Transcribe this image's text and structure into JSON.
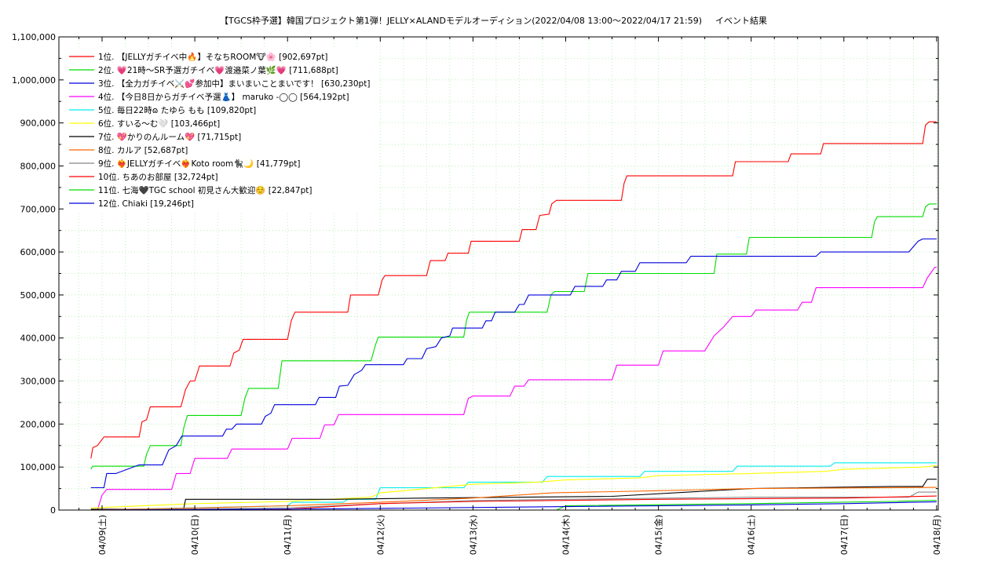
{
  "chart_data": {
    "type": "line",
    "title": "【TGCS枠予選】韓国プロジェクト第1弾！JELLY×ALANDモデルオーディション(2022/04/08 13:00〜2022/04/17 21:59)",
    "subtitle": "イベント結果",
    "xlabel": "",
    "ylabel": "",
    "x_ticks": [
      "04/09(土)",
      "04/10(日)",
      "04/11(月)",
      "04/12(火)",
      "04/13(水)",
      "04/14(木)",
      "04/15(金)",
      "04/16(土)",
      "04/17(日)",
      "04/18(月)"
    ],
    "y_ticks": [
      "0",
      "100,000",
      "200,000",
      "300,000",
      "400,000",
      "500,000",
      "600,000",
      "700,000",
      "800,000",
      "900,000",
      "1,000,000",
      "1,100,000"
    ],
    "ylim": [
      0,
      1100000
    ],
    "xlim_days": [
      0,
      9.45
    ],
    "grid": true,
    "legend_position": "top-left",
    "series": [
      {
        "name": "1位. 【JELLYガチイベ中🔥】そなちROOM🐮🌸 [902,697pt]",
        "color": "#ff0000",
        "points": [
          [
            -0.12,
            120000
          ],
          [
            -0.1,
            145000
          ],
          [
            -0.05,
            150000
          ],
          [
            0.02,
            170000
          ],
          [
            0.4,
            170000
          ],
          [
            0.43,
            205000
          ],
          [
            0.48,
            210000
          ],
          [
            0.52,
            240000
          ],
          [
            0.85,
            240000
          ],
          [
            0.9,
            280000
          ],
          [
            0.95,
            300000
          ],
          [
            1.0,
            300000
          ],
          [
            1.05,
            335000
          ],
          [
            1.38,
            335000
          ],
          [
            1.42,
            365000
          ],
          [
            1.48,
            372000
          ],
          [
            1.52,
            397000
          ],
          [
            2.0,
            397000
          ],
          [
            2.04,
            440000
          ],
          [
            2.08,
            460000
          ],
          [
            2.65,
            460000
          ],
          [
            2.68,
            500000
          ],
          [
            2.98,
            500000
          ],
          [
            3.02,
            535000
          ],
          [
            3.05,
            545000
          ],
          [
            3.5,
            545000
          ],
          [
            3.54,
            580000
          ],
          [
            3.7,
            580000
          ],
          [
            3.73,
            597000
          ],
          [
            3.95,
            597000
          ],
          [
            3.98,
            625000
          ],
          [
            4.5,
            625000
          ],
          [
            4.53,
            652000
          ],
          [
            4.68,
            652000
          ],
          [
            4.72,
            685000
          ],
          [
            4.82,
            688000
          ],
          [
            4.85,
            712000
          ],
          [
            4.9,
            720000
          ],
          [
            5.6,
            720000
          ],
          [
            5.63,
            760000
          ],
          [
            5.66,
            777000
          ],
          [
            6.8,
            777000
          ],
          [
            6.83,
            810000
          ],
          [
            7.4,
            810000
          ],
          [
            7.43,
            828000
          ],
          [
            7.75,
            828000
          ],
          [
            7.78,
            852000
          ],
          [
            8.85,
            852000
          ],
          [
            8.88,
            895000
          ],
          [
            8.92,
            902697
          ],
          [
            9.0,
            902697
          ]
        ]
      },
      {
        "name": "2位. 💗21時〜SR予選ガチイベ💗渡邉菜ノ葉🌿💗 [711,688pt]",
        "color": "#00dd00",
        "points": [
          [
            -0.12,
            95000
          ],
          [
            -0.1,
            102000
          ],
          [
            0.45,
            102000
          ],
          [
            0.48,
            130000
          ],
          [
            0.52,
            150000
          ],
          [
            0.85,
            150000
          ],
          [
            0.88,
            190000
          ],
          [
            0.92,
            220000
          ],
          [
            1.5,
            220000
          ],
          [
            1.54,
            260000
          ],
          [
            1.58,
            283000
          ],
          [
            1.9,
            283000
          ],
          [
            1.94,
            347000
          ],
          [
            2.9,
            347000
          ],
          [
            2.95,
            385000
          ],
          [
            2.98,
            402000
          ],
          [
            3.9,
            402000
          ],
          [
            3.93,
            440000
          ],
          [
            3.96,
            460000
          ],
          [
            4.8,
            460000
          ],
          [
            4.84,
            500000
          ],
          [
            4.88,
            508000
          ],
          [
            5.2,
            508000
          ],
          [
            5.24,
            550000
          ],
          [
            6.6,
            550000
          ],
          [
            6.63,
            595000
          ],
          [
            6.95,
            595000
          ],
          [
            6.98,
            634000
          ],
          [
            8.3,
            634000
          ],
          [
            8.33,
            670000
          ],
          [
            8.36,
            682000
          ],
          [
            8.85,
            682000
          ],
          [
            8.88,
            705000
          ],
          [
            8.92,
            711688
          ],
          [
            9.0,
            711688
          ]
        ]
      },
      {
        "name": "3位. 【全力ガチイベ⚔️💕参加中】まいまいことまいです！ [630,230pt]",
        "color": "#0000dd",
        "points": [
          [
            -0.12,
            52000
          ],
          [
            0.02,
            52000
          ],
          [
            0.05,
            85000
          ],
          [
            0.15,
            85000
          ],
          [
            0.4,
            105000
          ],
          [
            0.65,
            105000
          ],
          [
            0.72,
            140000
          ],
          [
            0.8,
            150000
          ],
          [
            0.86,
            172000
          ],
          [
            1.3,
            172000
          ],
          [
            1.34,
            188000
          ],
          [
            1.4,
            188000
          ],
          [
            1.45,
            200000
          ],
          [
            1.72,
            200000
          ],
          [
            1.76,
            218000
          ],
          [
            1.82,
            225000
          ],
          [
            1.86,
            245000
          ],
          [
            2.3,
            245000
          ],
          [
            2.34,
            262000
          ],
          [
            2.52,
            262000
          ],
          [
            2.56,
            288000
          ],
          [
            2.65,
            290000
          ],
          [
            2.72,
            315000
          ],
          [
            2.8,
            325000
          ],
          [
            2.84,
            338000
          ],
          [
            3.25,
            338000
          ],
          [
            3.29,
            352000
          ],
          [
            3.45,
            352000
          ],
          [
            3.5,
            375000
          ],
          [
            3.6,
            380000
          ],
          [
            3.66,
            400000
          ],
          [
            3.75,
            405000
          ],
          [
            3.78,
            423000
          ],
          [
            4.1,
            423000
          ],
          [
            4.14,
            440000
          ],
          [
            4.2,
            440000
          ],
          [
            4.24,
            460000
          ],
          [
            4.45,
            460000
          ],
          [
            4.5,
            478000
          ],
          [
            4.55,
            478000
          ],
          [
            4.6,
            500000
          ],
          [
            5.05,
            500000
          ],
          [
            5.1,
            520000
          ],
          [
            5.4,
            520000
          ],
          [
            5.44,
            535000
          ],
          [
            5.55,
            535000
          ],
          [
            5.6,
            555000
          ],
          [
            5.75,
            555000
          ],
          [
            5.8,
            575000
          ],
          [
            6.3,
            575000
          ],
          [
            6.35,
            590000
          ],
          [
            7.7,
            590000
          ],
          [
            7.75,
            600000
          ],
          [
            8.7,
            600000
          ],
          [
            8.8,
            625000
          ],
          [
            8.85,
            630230
          ],
          [
            9.0,
            630230
          ]
        ]
      },
      {
        "name": "4位. 【今日8日からガチイベ予選👗】 maruko -◯◯ [564,192pt]",
        "color": "#ff00ff",
        "points": [
          [
            -0.05,
            0
          ],
          [
            0.0,
            35000
          ],
          [
            0.05,
            48000
          ],
          [
            0.75,
            48000
          ],
          [
            0.8,
            85000
          ],
          [
            0.95,
            85000
          ],
          [
            1.0,
            120000
          ],
          [
            1.35,
            120000
          ],
          [
            1.4,
            142000
          ],
          [
            2.0,
            142000
          ],
          [
            2.05,
            167000
          ],
          [
            2.35,
            167000
          ],
          [
            2.4,
            198000
          ],
          [
            2.5,
            198000
          ],
          [
            2.55,
            222000
          ],
          [
            3.9,
            222000
          ],
          [
            3.95,
            260000
          ],
          [
            4.0,
            265000
          ],
          [
            4.4,
            265000
          ],
          [
            4.45,
            288000
          ],
          [
            4.55,
            288000
          ],
          [
            4.6,
            303000
          ],
          [
            5.5,
            303000
          ],
          [
            5.55,
            337000
          ],
          [
            6.0,
            337000
          ],
          [
            6.05,
            370000
          ],
          [
            6.5,
            370000
          ],
          [
            6.6,
            405000
          ],
          [
            6.7,
            425000
          ],
          [
            6.8,
            450000
          ],
          [
            7.0,
            450000
          ],
          [
            7.05,
            465000
          ],
          [
            7.5,
            465000
          ],
          [
            7.55,
            483000
          ],
          [
            7.65,
            483000
          ],
          [
            7.7,
            517000
          ],
          [
            8.85,
            517000
          ],
          [
            8.9,
            540000
          ],
          [
            8.98,
            564192
          ],
          [
            9.0,
            564192
          ]
        ]
      },
      {
        "name": "5位. 毎日22時ɷ たゆら もも [109,820pt]",
        "color": "#00eeee",
        "points": [
          [
            -0.12,
            0
          ],
          [
            2.0,
            10000
          ],
          [
            2.05,
            18000
          ],
          [
            2.6,
            18000
          ],
          [
            2.65,
            25000
          ],
          [
            2.95,
            25000
          ],
          [
            3.0,
            52000
          ],
          [
            3.9,
            52000
          ],
          [
            3.95,
            65000
          ],
          [
            4.75,
            65000
          ],
          [
            4.8,
            78000
          ],
          [
            5.8,
            78000
          ],
          [
            5.85,
            90000
          ],
          [
            6.8,
            90000
          ],
          [
            6.85,
            102000
          ],
          [
            7.85,
            102000
          ],
          [
            7.9,
            109820
          ],
          [
            9.0,
            109820
          ]
        ]
      },
      {
        "name": "6位. すいる〜む🤍 [103,466pt]",
        "color": "#ffff00",
        "points": [
          [
            -0.12,
            5000
          ],
          [
            1.0,
            15000
          ],
          [
            2.0,
            20000
          ],
          [
            2.9,
            30000
          ],
          [
            3.0,
            40000
          ],
          [
            3.5,
            50000
          ],
          [
            4.0,
            60000
          ],
          [
            4.7,
            65000
          ],
          [
            5.0,
            70000
          ],
          [
            5.8,
            75000
          ],
          [
            6.0,
            80000
          ],
          [
            7.0,
            85000
          ],
          [
            7.8,
            90000
          ],
          [
            8.0,
            95000
          ],
          [
            8.85,
            100000
          ],
          [
            9.0,
            103466
          ]
        ]
      },
      {
        "name": "7位. 💖かりのんルーム💖 [71,715pt]",
        "color": "#000000",
        "points": [
          [
            -0.12,
            2000
          ],
          [
            0.88,
            2000
          ],
          [
            0.9,
            25000
          ],
          [
            2.5,
            25000
          ],
          [
            3.5,
            28000
          ],
          [
            5.5,
            32000
          ],
          [
            7.0,
            50000
          ],
          [
            8.5,
            55000
          ],
          [
            8.85,
            55000
          ],
          [
            8.9,
            71715
          ],
          [
            9.0,
            71715
          ]
        ]
      },
      {
        "name": "8位. カルア [52,687pt]",
        "color": "#ff6600",
        "points": [
          [
            -0.12,
            0
          ],
          [
            1.0,
            5000
          ],
          [
            2.0,
            10000
          ],
          [
            3.0,
            18000
          ],
          [
            4.0,
            28000
          ],
          [
            4.85,
            40000
          ],
          [
            6.0,
            45000
          ],
          [
            7.0,
            50000
          ],
          [
            9.0,
            52687
          ]
        ]
      },
      {
        "name": "9位. ❤️‍🔥JELLYガチイベ❤️‍🔥Koto room🐈‍⬛🌙 [41,779pt]",
        "color": "#888888",
        "points": [
          [
            -0.12,
            0
          ],
          [
            2.0,
            5000
          ],
          [
            3.0,
            15000
          ],
          [
            4.0,
            22000
          ],
          [
            5.0,
            25000
          ],
          [
            7.0,
            30000
          ],
          [
            8.7,
            30000
          ],
          [
            8.8,
            41779
          ],
          [
            9.0,
            41779
          ]
        ]
      },
      {
        "name": "10位. ちあのお部屋 [32,724pt]",
        "color": "#ff0000",
        "points": [
          [
            -0.12,
            0
          ],
          [
            2.0,
            2000
          ],
          [
            3.0,
            15000
          ],
          [
            4.0,
            20000
          ],
          [
            6.0,
            25000
          ],
          [
            8.0,
            28000
          ],
          [
            9.0,
            32724
          ]
        ]
      },
      {
        "name": "11位. 七海🖤TGC school 初見さん大歓迎☺️ [22,847pt]",
        "color": "#00dd00",
        "points": [
          [
            -0.12,
            0
          ],
          [
            4.9,
            0
          ],
          [
            5.0,
            10000
          ],
          [
            7.0,
            15000
          ],
          [
            8.5,
            20000
          ],
          [
            9.0,
            22847
          ]
        ]
      },
      {
        "name": "12位. Chiaki [19,246pt]",
        "color": "#0000dd",
        "points": [
          [
            -0.12,
            0
          ],
          [
            2.5,
            3000
          ],
          [
            5.0,
            8000
          ],
          [
            7.0,
            12000
          ],
          [
            8.0,
            15000
          ],
          [
            9.0,
            19246
          ]
        ]
      }
    ]
  }
}
